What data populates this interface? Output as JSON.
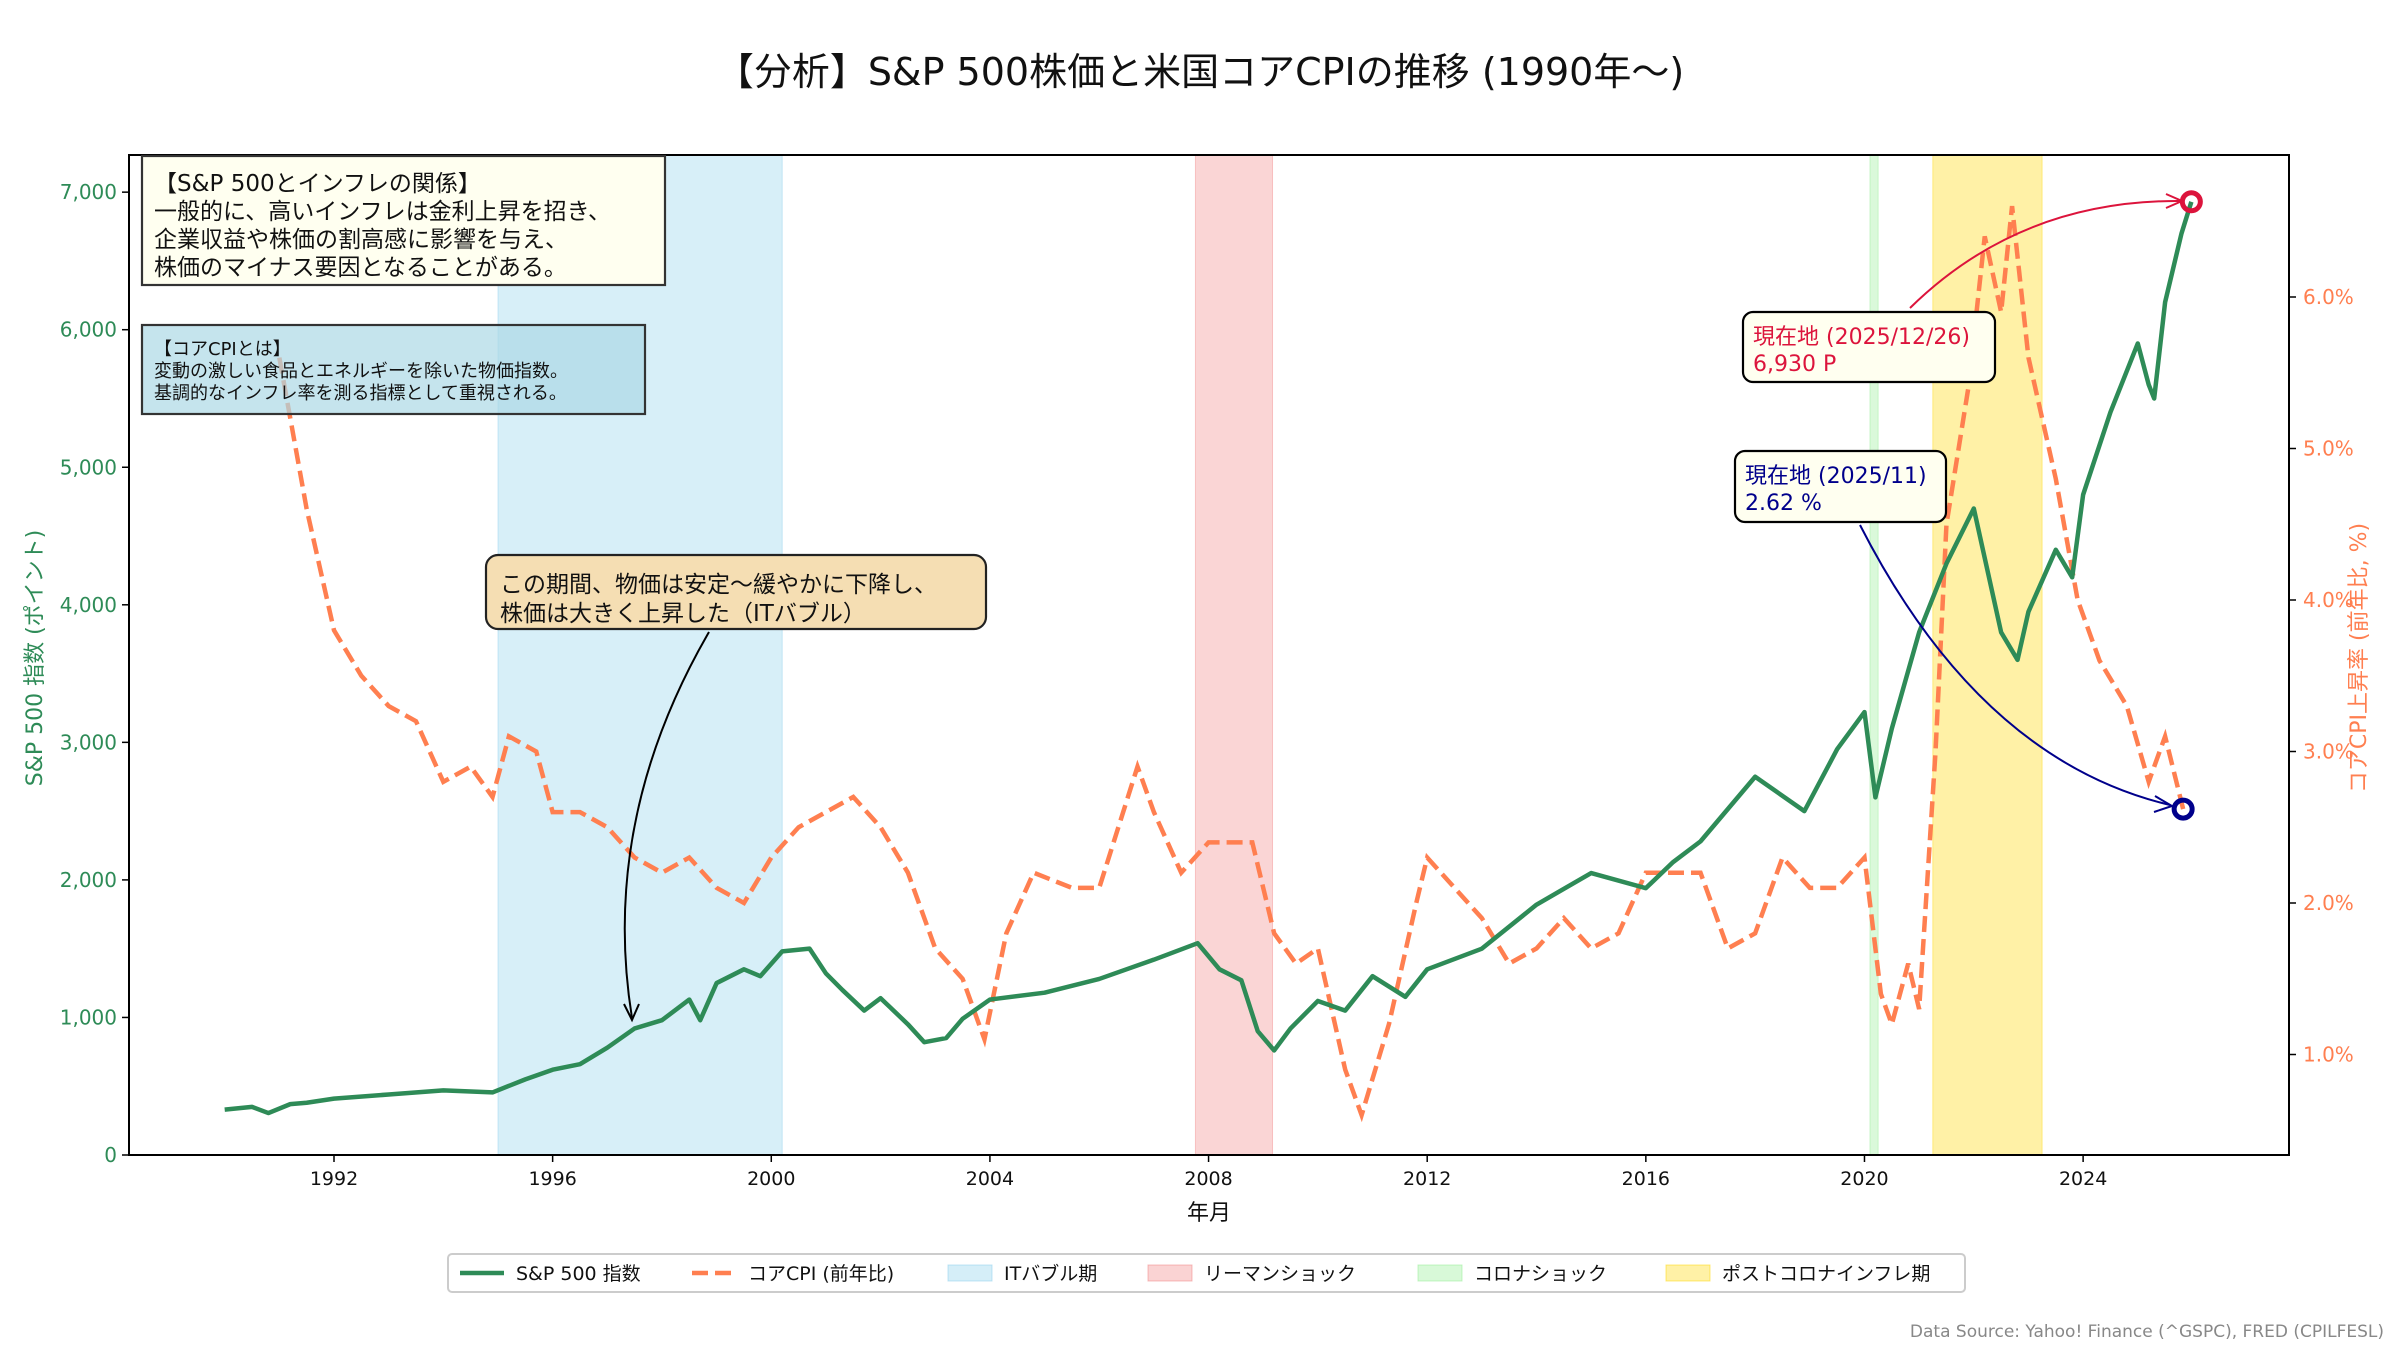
{
  "chart_data": {
    "type": "line",
    "title": "【分析】S&P 500株価と米国コアCPIの推移 (1990年〜)",
    "xlabel": "年月",
    "ylabel_left": "S&P 500 指数 (ポイント)",
    "ylabel_right": "コアCPI上昇率 (前年比, %)",
    "xlim": [
      1988.6,
      2027.0
    ],
    "ylim_left": [
      0,
      7300
    ],
    "ylim_right": [
      0.35,
      6.7
    ],
    "x_ticks": [
      "1992",
      "1996",
      "2000",
      "2004",
      "2008",
      "2012",
      "2016",
      "2020",
      "2024"
    ],
    "y_left_ticks": [
      "0",
      "1,000",
      "2,000",
      "3,000",
      "4,000",
      "5,000",
      "6,000",
      "7,000"
    ],
    "y_right_ticks": [
      "1.0%",
      "2.0%",
      "3.0%",
      "4.0%",
      "5.0%",
      "6.0%"
    ],
    "grid": false,
    "legend_placement": "bottom-center",
    "colors": {
      "sp500": "#2e8b57",
      "cpi": "#ff7f50",
      "it": "#87ceeb",
      "lehman": "#f08080",
      "corona": "#90ee90",
      "post": "#ffd700",
      "current_sp": "#dc143c",
      "current_cpi": "#00008b"
    },
    "series": [
      {
        "name": "S&P 500 指数",
        "axis": "left",
        "style": "solid",
        "x": [
          1990.0,
          1990.5,
          1990.8,
          1991.2,
          1991.5,
          1992,
          1993,
          1994,
          1994.9,
          1995.5,
          1996,
          1996.5,
          1997,
          1997.5,
          1998,
          1998.5,
          1998.7,
          1999,
          1999.5,
          1999.8,
          2000.2,
          2000.7,
          2001,
          2001.3,
          2001.7,
          2002,
          2002.5,
          2002.8,
          2003.2,
          2003.5,
          2004,
          2005,
          2006,
          2007,
          2007.8,
          2008.2,
          2008.6,
          2008.9,
          2009.2,
          2009.5,
          2010,
          2010.5,
          2011,
          2011.6,
          2012,
          2013,
          2014,
          2015,
          2016,
          2016.5,
          2017,
          2018,
          2018.9,
          2019.5,
          2020,
          2020.2,
          2020.5,
          2021,
          2021.5,
          2022,
          2022.5,
          2022.8,
          2023,
          2023.5,
          2023.8,
          2024,
          2024.5,
          2025,
          2025.2,
          2025.3,
          2025.5,
          2025.8,
          2025.98
        ],
        "y": [
          330,
          350,
          305,
          370,
          380,
          410,
          440,
          470,
          455,
          550,
          620,
          660,
          780,
          920,
          980,
          1130,
          980,
          1250,
          1350,
          1300,
          1480,
          1500,
          1320,
          1200,
          1050,
          1140,
          950,
          820,
          850,
          990,
          1130,
          1180,
          1280,
          1420,
          1540,
          1350,
          1270,
          900,
          760,
          920,
          1120,
          1050,
          1300,
          1150,
          1350,
          1500,
          1820,
          2050,
          1940,
          2130,
          2280,
          2750,
          2500,
          2950,
          3220,
          2600,
          3100,
          3800,
          4300,
          4700,
          3800,
          3600,
          3950,
          4400,
          4200,
          4800,
          5400,
          5900,
          5600,
          5500,
          6200,
          6700,
          6930
        ]
      },
      {
        "name": "コアCPI (前年比)",
        "axis": "right",
        "style": "dashed",
        "x": [
          1991.0,
          1991.5,
          1992,
          1992.5,
          1993,
          1993.5,
          1994,
          1994.5,
          1994.9,
          1995.2,
          1995.7,
          1996,
          1996.5,
          1997,
          1997.5,
          1998,
          1998.5,
          1999,
          1999.5,
          2000,
          2000.5,
          2001,
          2001.5,
          2002,
          2002.5,
          2003,
          2003.5,
          2003.9,
          2004.3,
          2004.8,
          2005.5,
          2006,
          2006.7,
          2007,
          2007.5,
          2008,
          2008.8,
          2009.2,
          2009.6,
          2010,
          2010.5,
          2010.8,
          2011.3,
          2011.8,
          2012,
          2012.5,
          2013,
          2013.5,
          2014,
          2014.5,
          2015,
          2015.5,
          2016,
          2016.5,
          2017,
          2017.5,
          2018,
          2018.5,
          2019,
          2019.5,
          2020,
          2020.3,
          2020.5,
          2020.8,
          2021.0,
          2021.3,
          2021.5,
          2021.9,
          2022.2,
          2022.5,
          2022.7,
          2023,
          2023.5,
          2023.9,
          2024.3,
          2024.8,
          2025.2,
          2025.5,
          2025.83
        ],
        "y": [
          5.6,
          4.6,
          3.8,
          3.5,
          3.3,
          3.2,
          2.8,
          2.9,
          2.7,
          3.1,
          3.0,
          2.6,
          2.6,
          2.5,
          2.3,
          2.2,
          2.3,
          2.1,
          2.0,
          2.3,
          2.5,
          2.6,
          2.7,
          2.5,
          2.2,
          1.7,
          1.5,
          1.1,
          1.8,
          2.2,
          2.1,
          2.1,
          2.9,
          2.6,
          2.2,
          2.4,
          2.4,
          1.8,
          1.6,
          1.7,
          0.9,
          0.6,
          1.2,
          2.0,
          2.3,
          2.1,
          1.9,
          1.6,
          1.7,
          1.9,
          1.7,
          1.8,
          2.2,
          2.2,
          2.2,
          1.7,
          1.8,
          2.3,
          2.1,
          2.1,
          2.3,
          1.4,
          1.2,
          1.6,
          1.3,
          3.0,
          4.5,
          5.4,
          6.4,
          5.9,
          6.6,
          5.6,
          4.8,
          4.0,
          3.6,
          3.3,
          2.8,
          3.1,
          2.62
        ]
      }
    ],
    "shaded_periods": [
      {
        "name": "ITバブル期",
        "start": 1995.0,
        "end": 2000.2
      },
      {
        "name": "リーマンショック",
        "start": 2007.76,
        "end": 2009.17
      },
      {
        "name": "コロナショック",
        "start": 2020.1,
        "end": 2020.25
      },
      {
        "name": "ポストコロナインフレ期",
        "start": 2021.25,
        "end": 2023.25
      }
    ],
    "annotations": {
      "relation_box": [
        "【S&P 500とインフレの関係】",
        "一般的に、高いインフレは金利上昇を招き、",
        "企業収益や株価の割高感に影響を与え、",
        "株価のマイナス要因となることがある。"
      ],
      "cpi_box": [
        "【コアCPIとは】",
        "変動の激しい食品とエネルギーを除いた物価指数。",
        "基調的なインフレ率を測る指標として重視される。"
      ],
      "it_box": [
        "この期間、物価は安定〜緩やかに下降し、",
        "株価は大きく上昇した（ITバブル）"
      ],
      "current_sp": [
        "現在地 (2025/12/26)",
        "6,930 P"
      ],
      "current_cpi": [
        "現在地 (2025/11)",
        "2.62 %"
      ]
    }
  },
  "legend": [
    "S&P 500 指数",
    "コアCPI (前年比)",
    "ITバブル期",
    "リーマンショック",
    "コロナショック",
    "ポストコロナインフレ期"
  ],
  "source": "Data Source: Yahoo! Finance (^GSPC), FRED (CPILFESL)"
}
